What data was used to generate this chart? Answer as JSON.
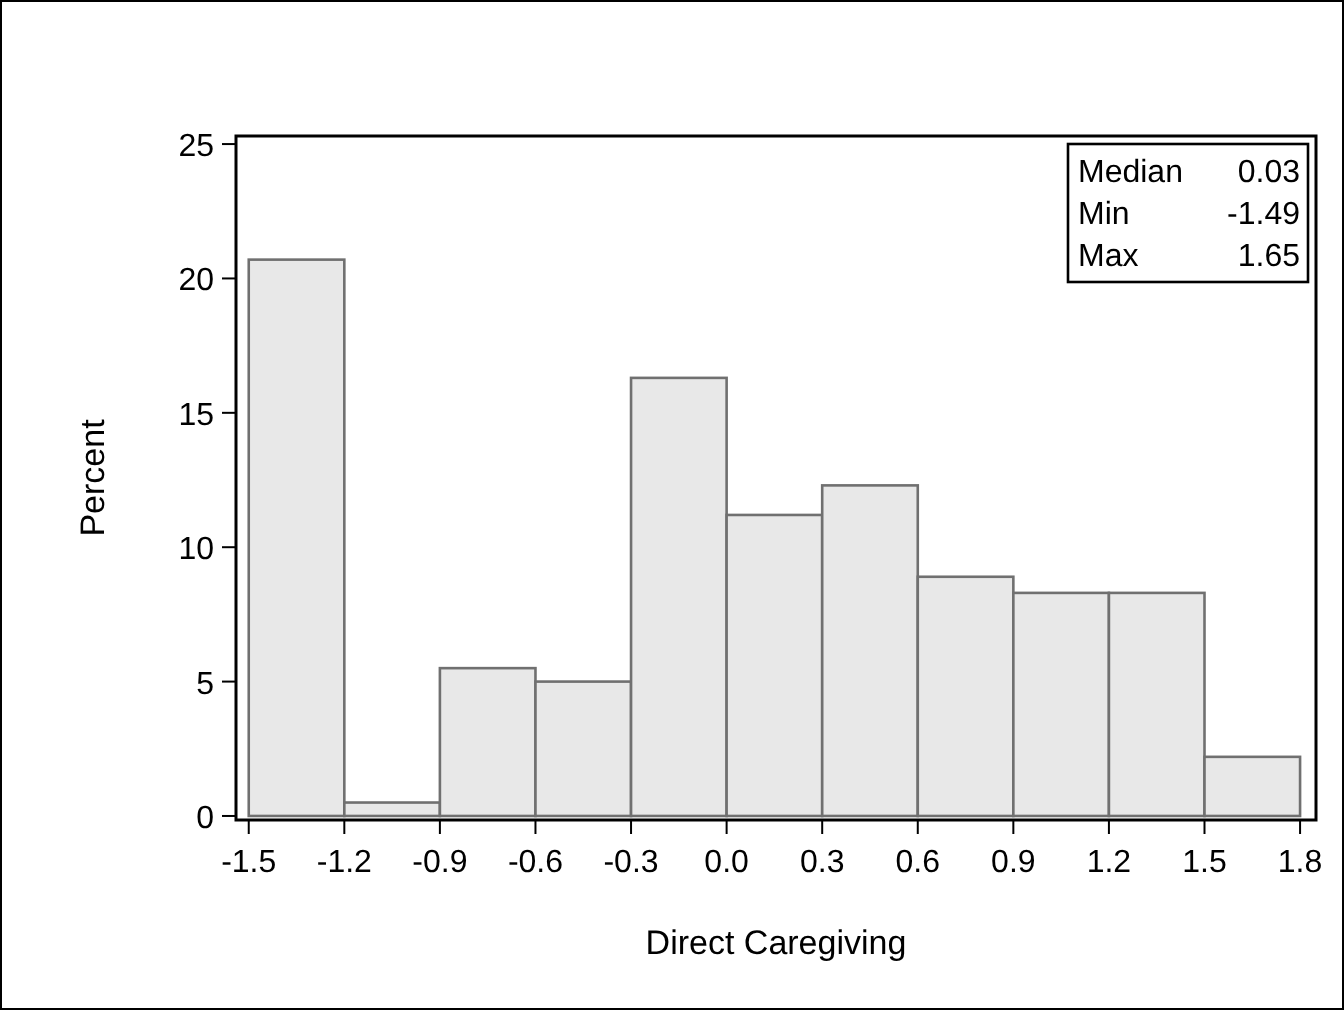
{
  "chart_data": {
    "type": "histogram",
    "xlabel": "Direct Caregiving",
    "ylabel": "Percent",
    "bins": [
      -1.5,
      -1.2,
      -0.9,
      -0.6,
      -0.3,
      0.0,
      0.3,
      0.6,
      0.9,
      1.2,
      1.5,
      1.8
    ],
    "values": [
      20.7,
      0.5,
      5.5,
      5.0,
      16.3,
      11.2,
      12.3,
      8.9,
      8.3,
      8.3,
      2.2
    ],
    "color": "#e8e8e8",
    "xlim": [
      -1.54,
      1.85
    ],
    "ylim": [
      -0.15,
      25.3
    ],
    "xticks": [
      {
        "value": -1.5,
        "label": "-1.5"
      },
      {
        "value": -1.2,
        "label": "-1.2"
      },
      {
        "value": -0.9,
        "label": "-0.9"
      },
      {
        "value": -0.6,
        "label": "-0.6"
      },
      {
        "value": -0.3,
        "label": "-0.3"
      },
      {
        "value": 0,
        "label": "0.0"
      },
      {
        "value": 0.3,
        "label": "0.3"
      },
      {
        "value": 0.6,
        "label": "0.6"
      },
      {
        "value": 0.9,
        "label": "0.9"
      },
      {
        "value": 1.2,
        "label": "1.2"
      },
      {
        "value": 1.5,
        "label": "1.5"
      },
      {
        "value": 1.8,
        "label": "1.8"
      }
    ],
    "yticks": [
      0,
      5,
      10,
      15,
      20,
      25
    ],
    "annotations": [
      "Median 0.03",
      "Min -1.49",
      "Max 1.65"
    ]
  }
}
